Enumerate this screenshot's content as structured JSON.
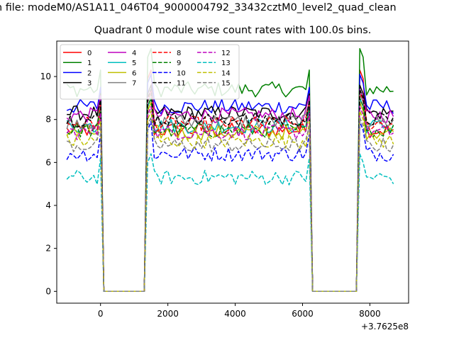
{
  "chart_data": {
    "type": "line",
    "suptitle": "n file: modeM0/AS1A11_046T04_9000004792_33432cztM0_level2_quad_clean",
    "title": "Quadrant 0 module wise count rates with 100.0s bins.",
    "xlabel": "",
    "ylabel": "",
    "x_offset_label": "+3.7625e8",
    "xlim": [
      -1300,
      9150
    ],
    "ylim": [
      -0.55,
      11.65
    ],
    "xticks": [
      0,
      2000,
      4000,
      6000,
      8000
    ],
    "xtick_labels": [
      "0",
      "2000",
      "4000",
      "6000",
      "8000"
    ],
    "yticks": [
      0,
      2,
      4,
      6,
      8,
      10
    ],
    "ytick_labels": [
      "0",
      "2",
      "4",
      "6",
      "8",
      "10"
    ],
    "grid": false,
    "legend_position": "upper-left",
    "legend_columns": 4,
    "x_start": -1000,
    "x_step": 100,
    "num_points": 98,
    "gaps": [
      [
        100,
        1300
      ],
      [
        6300,
        7600
      ]
    ],
    "series": [
      {
        "name": "0",
        "color": "#ff0000",
        "dash": "solid",
        "level": 7.5,
        "edge_high": 10.3
      },
      {
        "name": "1",
        "color": "#008000",
        "dash": "solid",
        "level": 9.4,
        "edge_high": 11.3
      },
      {
        "name": "2",
        "color": "#0000ff",
        "dash": "solid",
        "level": 8.6,
        "edge_high": 10.1
      },
      {
        "name": "3",
        "color": "#000000",
        "dash": "solid",
        "level": 8.3,
        "edge_high": 9.6
      },
      {
        "name": "4",
        "color": "#bf00bf",
        "dash": "solid",
        "level": 8.2,
        "edge_high": 9.4
      },
      {
        "name": "5",
        "color": "#00bfbf",
        "dash": "solid",
        "level": 7.7,
        "edge_high": 9.0
      },
      {
        "name": "6",
        "color": "#bfbf00",
        "dash": "solid",
        "level": 7.4,
        "edge_high": 8.8
      },
      {
        "name": "7",
        "color": "#808080",
        "dash": "solid",
        "level": 7.9,
        "edge_high": 9.2
      },
      {
        "name": "8",
        "color": "#ff0000",
        "dash": "dashed",
        "level": 7.8,
        "edge_high": 9.3
      },
      {
        "name": "9",
        "color": "#008000",
        "dash": "dashed",
        "level": 7.5,
        "edge_high": 9.0
      },
      {
        "name": "10",
        "color": "#0000ff",
        "dash": "dashed",
        "level": 6.4,
        "edge_high": 7.9
      },
      {
        "name": "11",
        "color": "#000000",
        "dash": "dashed",
        "level": 8.0,
        "edge_high": 9.4
      },
      {
        "name": "12",
        "color": "#bf00bf",
        "dash": "dashed",
        "level": 7.4,
        "edge_high": 8.6
      },
      {
        "name": "13",
        "color": "#00bfbf",
        "dash": "dashed",
        "level": 5.3,
        "edge_high": 6.4
      },
      {
        "name": "14",
        "color": "#bfbf00",
        "dash": "dashed",
        "level": 7.0,
        "edge_high": 8.4
      },
      {
        "name": "15",
        "color": "#808080",
        "dash": "dashed",
        "level": 6.8,
        "edge_high": 8.1
      }
    ]
  }
}
